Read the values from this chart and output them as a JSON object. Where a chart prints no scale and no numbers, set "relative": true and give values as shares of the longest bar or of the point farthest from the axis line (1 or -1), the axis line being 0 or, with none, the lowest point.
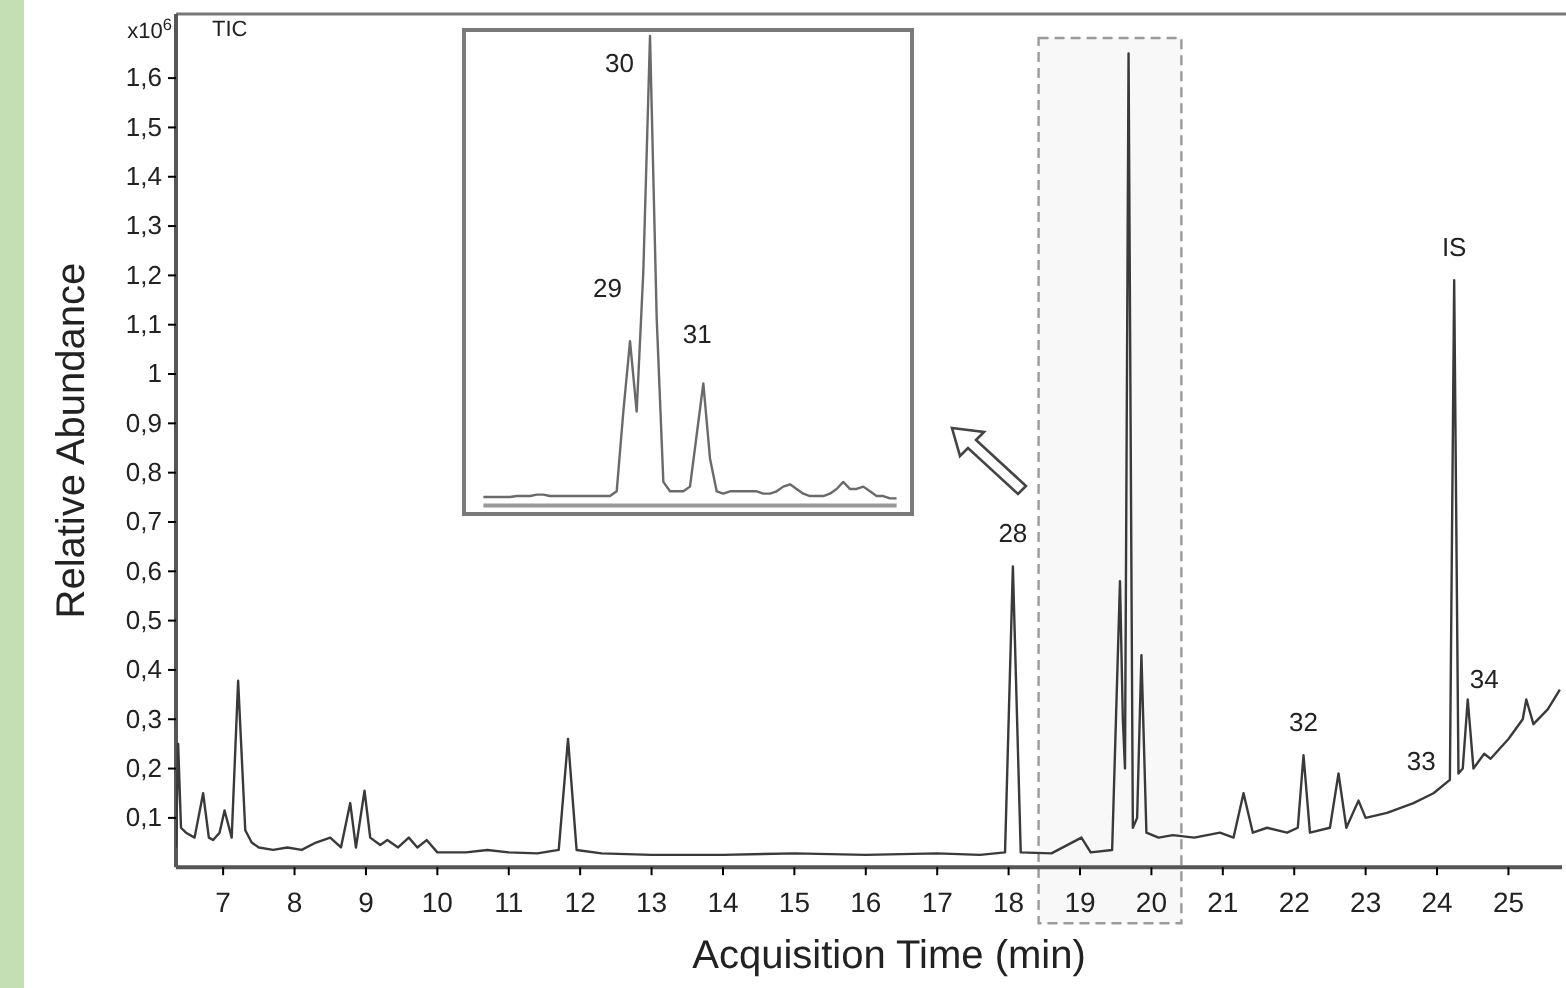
{
  "chart_data": [
    {
      "type": "line",
      "xlabel": "Acquisition Time (min)",
      "ylabel": "Relative Abundance",
      "annotations": [
        "TIC",
        "x10$^{6}$",
        {
          "text": "28",
          "x": 18.06,
          "y": 0.61
        },
        {
          "text": "32",
          "x": 22.13,
          "y": 0.227
        },
        {
          "text": "33",
          "x": 24.15,
          "y": 0.18
        },
        {
          "text": "IS",
          "x": 24.24,
          "y": 1.19
        },
        {
          "text": "34",
          "x": 24.43,
          "y": 0.34
        }
      ],
      "series": [
        {
          "color": "#3a3a3a",
          "x": [
            6.34,
            6.37,
            6.41,
            6.48,
            6.6,
            6.72,
            6.8,
            6.86,
            6.95,
            7.02,
            7.12,
            7.21,
            7.31,
            7.4,
            7.5,
            7.7,
            7.9,
            8.1,
            8.3,
            8.5,
            8.65,
            8.78,
            8.86,
            8.98,
            9.06,
            9.2,
            9.3,
            9.45,
            9.6,
            9.72,
            9.85,
            10.0,
            10.4,
            10.7,
            11.0,
            11.4,
            11.7,
            11.83,
            11.95,
            12.3,
            13.0,
            14.0,
            15.0,
            16.0,
            17.0,
            17.6,
            17.95,
            18.06,
            18.17,
            18.6,
            19.02,
            19.15,
            19.45,
            19.56,
            19.6,
            19.63,
            19.68,
            19.74,
            19.8,
            19.86,
            19.93,
            20.1,
            20.3,
            20.6,
            20.96,
            21.15,
            21.29,
            21.42,
            21.62,
            21.9,
            22.05,
            22.13,
            22.22,
            22.5,
            22.62,
            22.73,
            22.9,
            23.0,
            23.3,
            23.67,
            23.95,
            24.18,
            24.24,
            24.3,
            24.36,
            24.43,
            24.51,
            24.66,
            24.75,
            25.0,
            25.2,
            25.25,
            25.35,
            25.55,
            25.72
          ],
          "values": [
            0.04,
            0.25,
            0.08,
            0.07,
            0.06,
            0.15,
            0.06,
            0.055,
            0.07,
            0.115,
            0.06,
            0.378,
            0.075,
            0.05,
            0.04,
            0.035,
            0.04,
            0.035,
            0.05,
            0.06,
            0.04,
            0.13,
            0.04,
            0.155,
            0.06,
            0.045,
            0.055,
            0.04,
            0.06,
            0.04,
            0.055,
            0.03,
            0.03,
            0.035,
            0.03,
            0.028,
            0.035,
            0.26,
            0.035,
            0.028,
            0.025,
            0.025,
            0.028,
            0.025,
            0.028,
            0.025,
            0.03,
            0.61,
            0.03,
            0.028,
            0.06,
            0.03,
            0.035,
            0.58,
            0.3,
            0.2,
            1.65,
            0.08,
            0.1,
            0.43,
            0.07,
            0.06,
            0.065,
            0.06,
            0.07,
            0.06,
            0.15,
            0.07,
            0.08,
            0.07,
            0.08,
            0.227,
            0.07,
            0.08,
            0.19,
            0.08,
            0.135,
            0.1,
            0.11,
            0.13,
            0.15,
            0.177,
            1.19,
            0.19,
            0.2,
            0.34,
            0.2,
            0.23,
            0.22,
            0.26,
            0.3,
            0.34,
            0.29,
            0.32,
            0.36
          ]
        }
      ],
      "xlim": [
        6.34,
        25.75
      ],
      "ylim": [
        0,
        1.73
      ],
      "xticks": [
        7,
        8,
        9,
        10,
        11,
        12,
        13,
        14,
        15,
        16,
        17,
        18,
        19,
        20,
        21,
        22,
        23,
        24,
        25
      ],
      "yticks": [
        {
          "value": 0.1,
          "label": "0,1"
        },
        {
          "value": 0.2,
          "label": "0,2"
        },
        {
          "value": 0.3,
          "label": "0,3"
        },
        {
          "value": 0.4,
          "label": "0,4"
        },
        {
          "value": 0.5,
          "label": "0,5"
        },
        {
          "value": 0.6,
          "label": "0,6"
        },
        {
          "value": 0.7,
          "label": "0,7"
        },
        {
          "value": 0.8,
          "label": "0,8"
        },
        {
          "value": 0.9,
          "label": "0,9"
        },
        1,
        {
          "value": 1.1,
          "label": "1,1"
        },
        {
          "value": 1.2,
          "label": "1,2"
        },
        {
          "value": 1.3,
          "label": "1,3"
        },
        {
          "value": 1.4,
          "label": "1,4"
        },
        {
          "value": 1.5,
          "label": "1,5"
        },
        {
          "value": 1.6,
          "label": "1,6"
        }
      ],
      "bands": [
        {
          "axis": "x",
          "from": 18.42,
          "to": 20.42,
          "color": "#9a9a9a"
        }
      ],
      "grid": false
    },
    {
      "type": "line",
      "relative": true,
      "tick_labels": false,
      "annotations": [
        "30",
        "29",
        "31"
      ],
      "categories": [
        null,
        null,
        null,
        null,
        null,
        null,
        null,
        null,
        null,
        null,
        null,
        null,
        null,
        null,
        null,
        null,
        null,
        null,
        null,
        null,
        null,
        null,
        null,
        null,
        null,
        null,
        null,
        null,
        null,
        null,
        null,
        null,
        null,
        null,
        null,
        null,
        null,
        null,
        null,
        null,
        null,
        null,
        null,
        null,
        null,
        null,
        null,
        null,
        null,
        null,
        null,
        null,
        null,
        null,
        null,
        null,
        null,
        null,
        null,
        null,
        null,
        null,
        null
      ],
      "series": [
        {
          "color": "#6a6a6a",
          "values": [
            0.018,
            0.018,
            0.018,
            0.018,
            0.018,
            0.02,
            0.02,
            0.02,
            0.023,
            0.023,
            0.02,
            0.02,
            0.02,
            0.02,
            0.02,
            0.02,
            0.02,
            0.02,
            0.02,
            0.02,
            0.03,
            0.2,
            0.35,
            0.2,
            0.5,
            1,
            0.4,
            0.05,
            0.03,
            0.03,
            0.03,
            0.04,
            0.15,
            0.26,
            0.1,
            0.03,
            0.025,
            0.03,
            0.03,
            0.03,
            0.03,
            0.03,
            0.025,
            0.025,
            0.03,
            0.04,
            0.045,
            0.035,
            0.025,
            0.02,
            0.02,
            0.02,
            0.025,
            0.035,
            0.05,
            0.035,
            0.035,
            0.04,
            0.03,
            0.02,
            0.02,
            0.015,
            0.015
          ]
        }
      ],
      "grid": false
    }
  ]
}
